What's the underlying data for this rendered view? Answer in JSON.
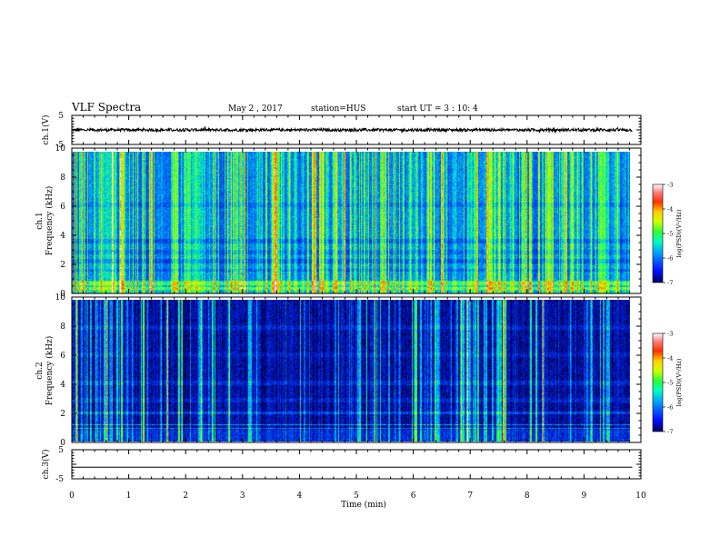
{
  "header": {
    "title": "VLF Spectra",
    "date": "May 2  , 2017",
    "station": "station=HUS",
    "start": "start  UT  =   3  : 10: 4"
  },
  "chart_data": [
    {
      "type": "line",
      "ylabel": "ch.1(V)",
      "ylim": [
        -5,
        5
      ],
      "yticks": [
        "5",
        "-5"
      ],
      "xlim": [
        0,
        10
      ],
      "description_values": {
        "baseline": 0.0,
        "amplitude": 0.5
      }
    },
    {
      "type": "heatmap",
      "ylabel": "ch.1\nFrequency (kHz)",
      "ylabel_lines": [
        "ch.1",
        "Frequency (kHz)"
      ],
      "ylim": [
        0,
        10
      ],
      "yticks": [
        "0",
        "2",
        "4",
        "6",
        "8",
        "10"
      ],
      "xlim": [
        0,
        9.85
      ],
      "colorbar": {
        "label": "log(PSD)(V²/Hz)",
        "range": [
          -7,
          -3
        ],
        "ticks": [
          "-3",
          "-4",
          "-5",
          "-6",
          "-7"
        ]
      }
    },
    {
      "type": "heatmap",
      "ylabel": "ch.2\nFrequency (kHz)",
      "ylabel_lines": [
        "ch.2",
        "Frequency (kHz)"
      ],
      "ylim": [
        0,
        10
      ],
      "yticks": [
        "0",
        "2",
        "4",
        "6",
        "8",
        "10"
      ],
      "xlim": [
        0,
        9.85
      ],
      "colorbar": {
        "label": "log(PSD)(V²/Hz)",
        "range": [
          -7,
          -3
        ],
        "ticks": [
          "-3",
          "-4",
          "-5",
          "-6",
          "-7"
        ]
      }
    },
    {
      "type": "line",
      "ylabel": "ch.3(V)",
      "ylim": [
        -5,
        5
      ],
      "yticks": [
        "5",
        "-5"
      ],
      "xlim": [
        0,
        10
      ],
      "description_values": {
        "baseline": -1.0,
        "amplitude": 0.0
      }
    }
  ],
  "xaxis": {
    "label": "Time  (min)",
    "ticks": [
      "0",
      "1",
      "2",
      "3",
      "4",
      "5",
      "6",
      "7",
      "8",
      "9",
      "10"
    ],
    "range": [
      0,
      10
    ]
  }
}
